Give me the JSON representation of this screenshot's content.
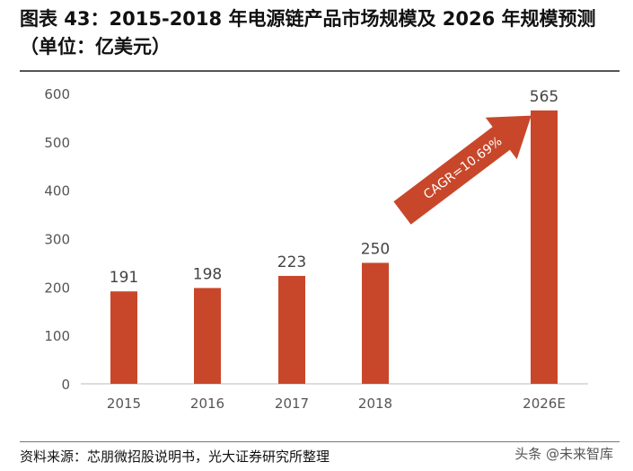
{
  "title": "图表 43：2015-2018 年电源链产品市场规模及 2026 年规模预测（单位：亿美元）",
  "source": "资料来源：芯朋微招股说明书，光大证券研究所整理",
  "watermark": "头条 @未来智库",
  "chart_data": {
    "type": "bar",
    "categories": [
      "2015",
      "2016",
      "2017",
      "2018",
      "2026E"
    ],
    "values": [
      191,
      198,
      223,
      250,
      565
    ],
    "value_labels": [
      "191",
      "198",
      "223",
      "250",
      "565"
    ],
    "ylim": [
      0,
      600
    ],
    "yticks": [
      0,
      100,
      200,
      300,
      400,
      500,
      600
    ],
    "xlabel": "",
    "ylabel": "",
    "grid": false,
    "legend": "none",
    "annotation": "CAGR=10.69%",
    "colors": {
      "bar": "#c8472a",
      "arrow": "#c8472a",
      "annotation_text": "#ffffff",
      "axis": "#bbbbbb",
      "tick_text": "#555555"
    }
  }
}
